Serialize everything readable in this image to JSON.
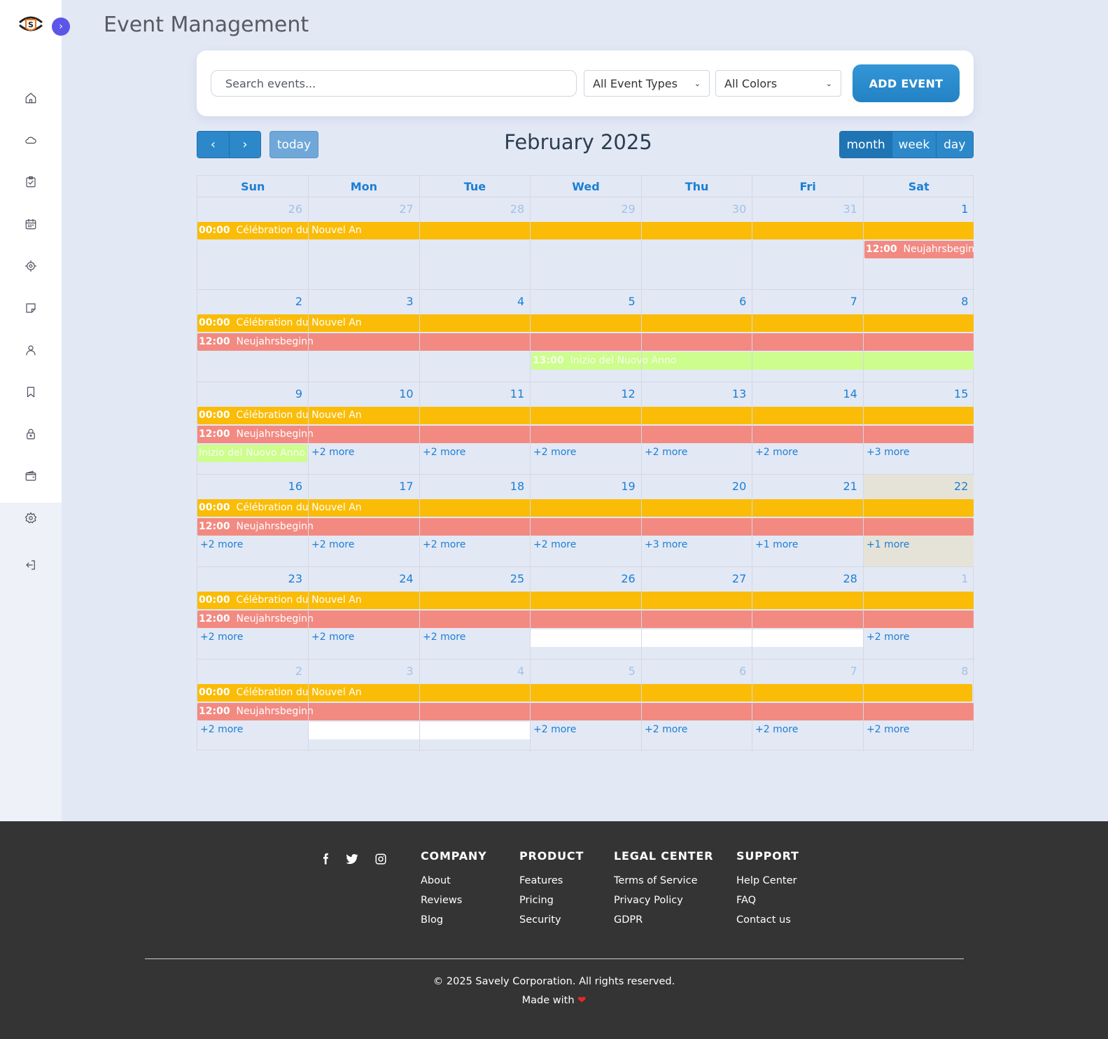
{
  "sidebar": {
    "logo_text": "SAVELY",
    "nav_icons": [
      "home-icon",
      "cloud-icon",
      "clipboard-check-icon",
      "calendar-icon",
      "target-icon",
      "sticky-note-icon",
      "user-icon",
      "bookmark-icon",
      "lock-icon",
      "wallet-icon",
      "settings-icon",
      "logout-icon"
    ]
  },
  "header": {
    "title": "Event Management"
  },
  "toolbar": {
    "search_placeholder": "Search events...",
    "event_types_value": "All Event Types",
    "colors_value": "All Colors",
    "add_label": "ADD EVENT"
  },
  "calendar": {
    "title": "February 2025",
    "today_label": "today",
    "views": [
      "month",
      "week",
      "day"
    ],
    "active_view": "month",
    "days_of_week": [
      "Sun",
      "Mon",
      "Tue",
      "Wed",
      "Thu",
      "Fri",
      "Sat"
    ],
    "weeks": [
      [
        "26",
        "27",
        "28",
        "29",
        "30",
        "31",
        "1"
      ],
      [
        "2",
        "3",
        "4",
        "5",
        "6",
        "7",
        "8"
      ],
      [
        "9",
        "10",
        "11",
        "12",
        "13",
        "14",
        "15"
      ],
      [
        "16",
        "17",
        "18",
        "19",
        "20",
        "21",
        "22"
      ],
      [
        "23",
        "24",
        "25",
        "26",
        "27",
        "28",
        "1"
      ],
      [
        "2",
        "3",
        "4",
        "5",
        "6",
        "7",
        "8"
      ]
    ],
    "events": {
      "celebration": {
        "time": "00:00",
        "title": "Célébration du Nouvel An",
        "color": "#fabc06"
      },
      "neujahr": {
        "time": "12:00",
        "title": "Neujahrsbeginn",
        "color": "#f28a82"
      },
      "inizio": {
        "time": "13:00",
        "title": "Inizio del Nuovo Anno",
        "color": "#cdfd8c"
      },
      "inizio_cont": "Inizio del Nuovo Anno"
    },
    "more_links": {
      "week3": [
        "+2 more",
        "+2 more",
        "+2 more",
        "+2 more",
        "+2 more",
        "+3 more"
      ],
      "week4": [
        "+2 more",
        "+2 more",
        "+2 more",
        "+2 more",
        "+3 more",
        "+1 more",
        "+1 more"
      ],
      "week5": [
        "+2 more",
        "+2 more",
        "+2 more",
        "+2 more"
      ],
      "week6": [
        "+2 more",
        "+2 more",
        "+2 more",
        "+2 more",
        "+2 more"
      ]
    }
  },
  "footer": {
    "social": [
      "facebook-icon",
      "twitter-icon",
      "instagram-icon"
    ],
    "columns": [
      {
        "heading": "COMPANY",
        "links": [
          "About",
          "Reviews",
          "Blog"
        ]
      },
      {
        "heading": "PRODUCT",
        "links": [
          "Features",
          "Pricing",
          "Security"
        ]
      },
      {
        "heading": "LEGAL CENTER",
        "links": [
          "Terms of Service",
          "Privacy Policy",
          "GDPR"
        ]
      },
      {
        "heading": "SUPPORT",
        "links": [
          "Help Center",
          "FAQ",
          "Contact us"
        ]
      }
    ],
    "copyright": "© 2025 Savely Corporation. All rights reserved.",
    "made_with": "Made with",
    "heart": "❤"
  }
}
